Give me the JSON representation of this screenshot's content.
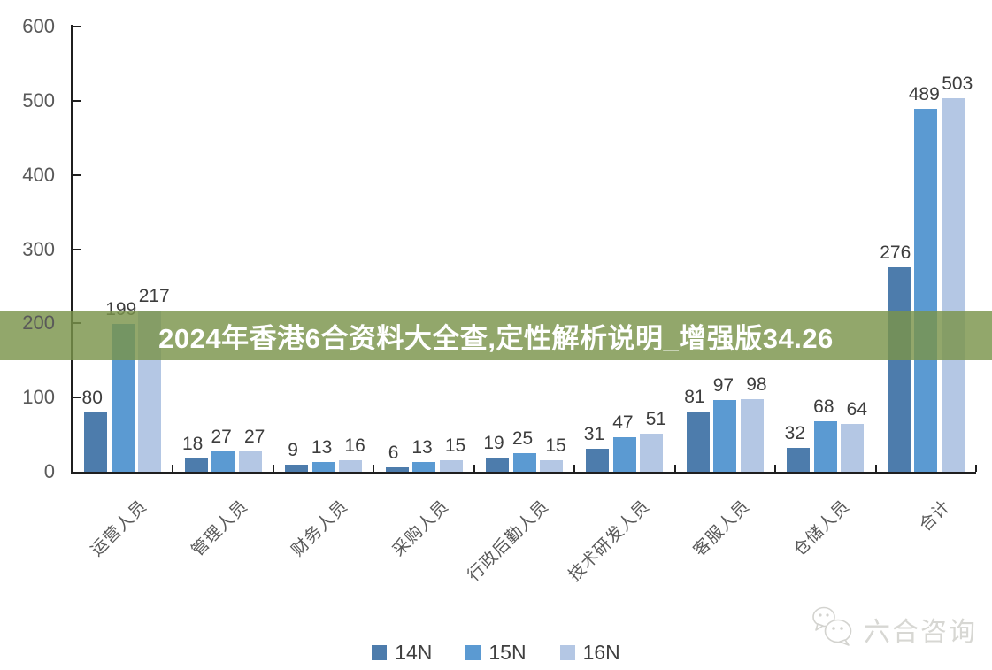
{
  "banner": {
    "text": "2024年香港6合资料大全查,定性解析说明_增强版34.26",
    "bg_color": "rgba(122,148,74,0.82)",
    "text_color": "#ffffff"
  },
  "watermark": {
    "icon": "wechat-bubbles-icon",
    "text": "六合咨询",
    "color": "#d7d7d3"
  },
  "chart_data": {
    "type": "bar",
    "categories": [
      "运营人员",
      "管理人员",
      "财务人员",
      "采购人员",
      "行政后勤人员",
      "技术研发人员",
      "客服人员",
      "仓储人员",
      "合计"
    ],
    "series": [
      {
        "name": "14N",
        "color": "#4d7cac",
        "values": [
          80,
          18,
          9,
          6,
          19,
          31,
          81,
          32,
          276
        ]
      },
      {
        "name": "15N",
        "color": "#5b9ad2",
        "values": [
          199,
          27,
          13,
          13,
          25,
          47,
          97,
          68,
          489
        ]
      },
      {
        "name": "16N",
        "color": "#b4c7e4",
        "values": [
          217,
          27,
          16,
          15,
          15,
          51,
          98,
          64,
          503
        ]
      }
    ],
    "title": "",
    "xlabel": "",
    "ylabel": "",
    "ylim": [
      0,
      600
    ],
    "yticks": [
      0,
      100,
      200,
      300,
      400,
      500,
      600
    ],
    "grid": false,
    "legend_position": "bottom",
    "value_labels": true,
    "axis_color": "#1f1f1f",
    "tick_label_color": "#595959",
    "value_label_color": "#3d3d3d"
  }
}
